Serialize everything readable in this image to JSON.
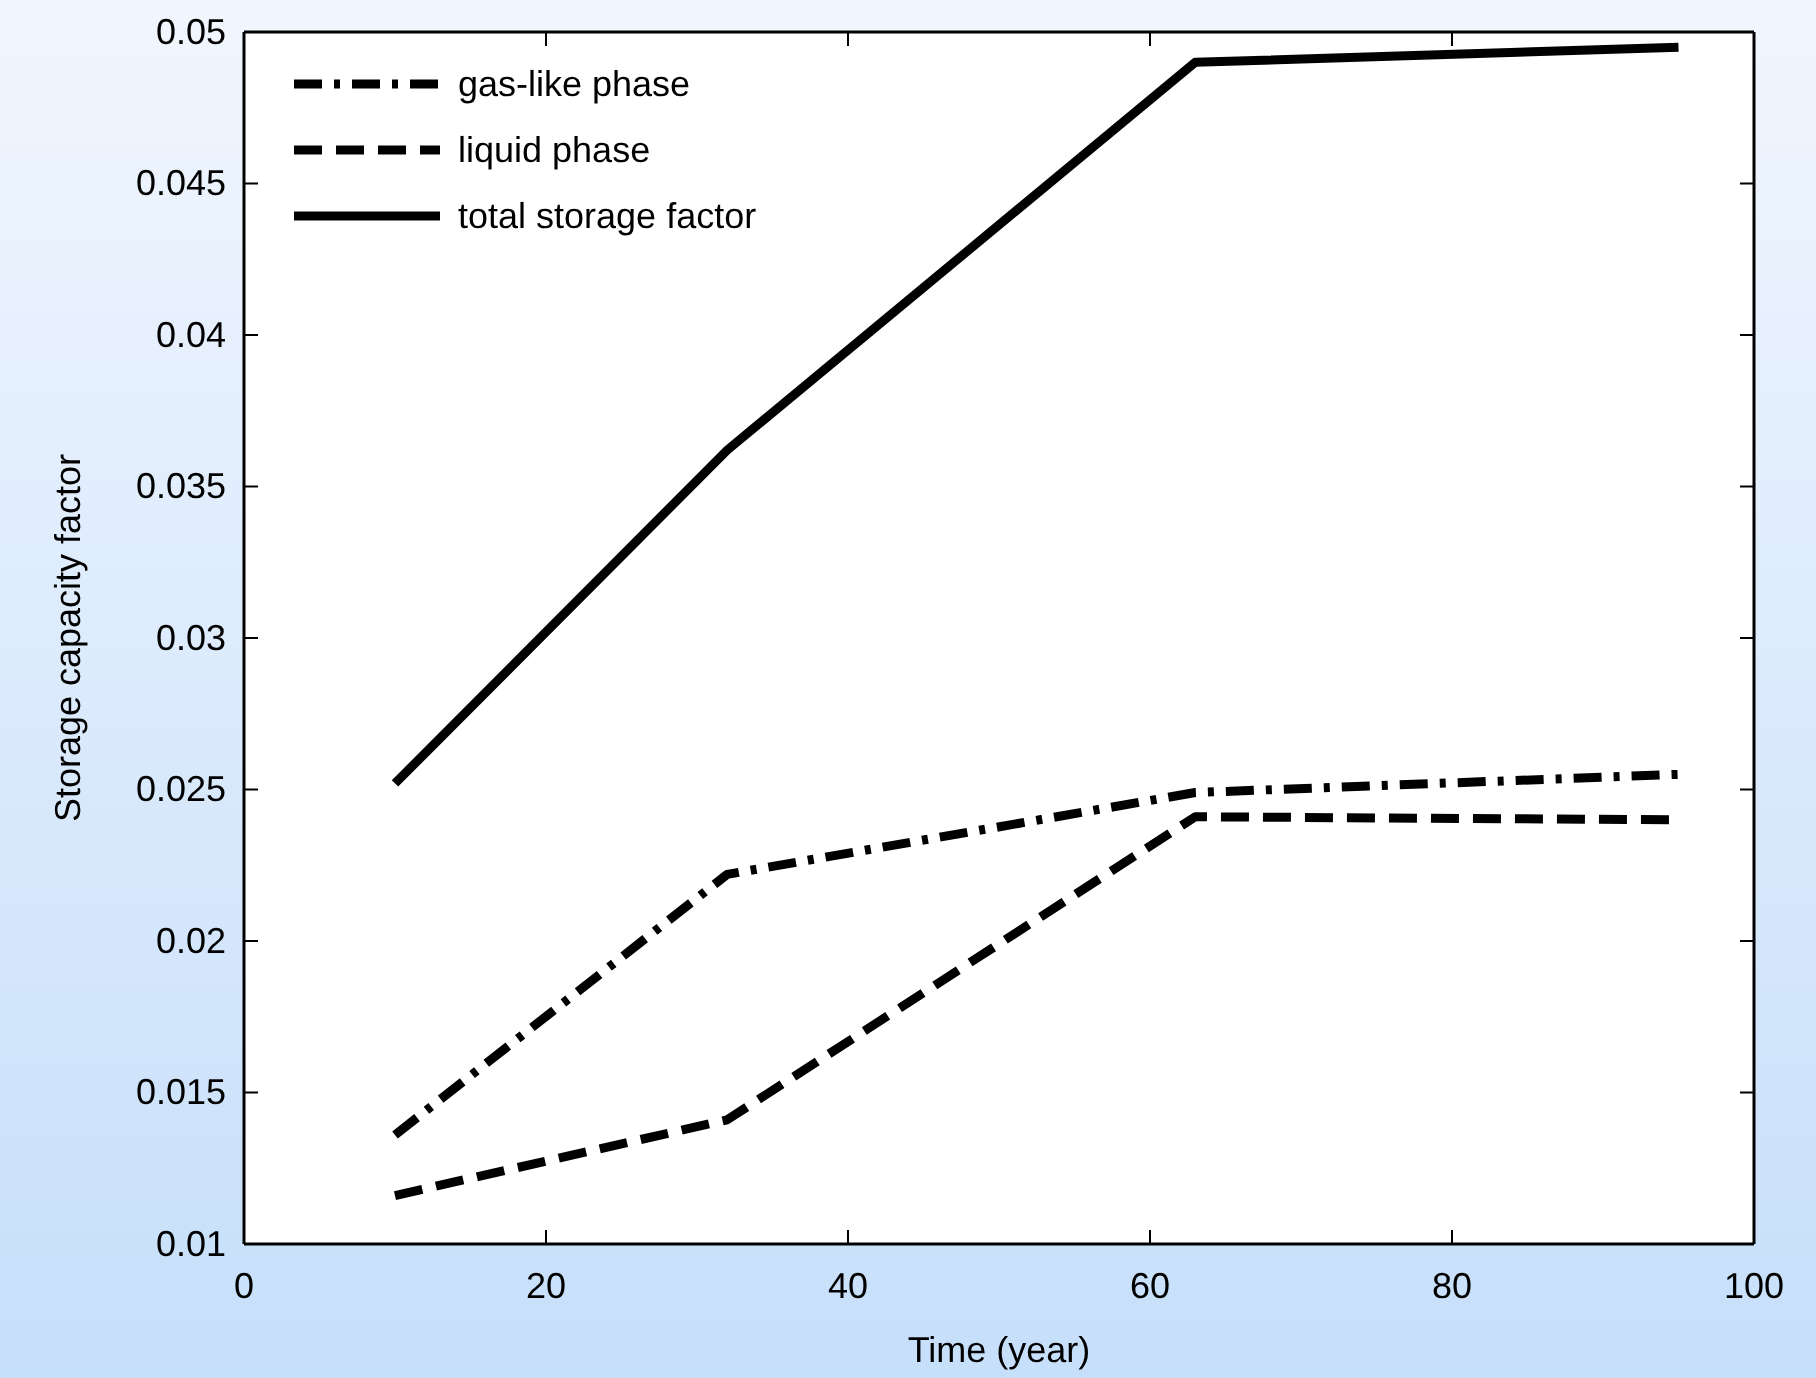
{
  "chart_data": {
    "type": "line",
    "xlabel": "Time (year)",
    "ylabel": "Storage capacity factor",
    "x": [
      10,
      32,
      63,
      95
    ],
    "series": [
      {
        "name": "gas-like phase",
        "color": "#000000",
        "line_style": "dashdot",
        "values": [
          0.0136,
          0.0222,
          0.0249,
          0.0255
        ]
      },
      {
        "name": "liquid phase",
        "color": "#000000",
        "line_style": "dashed",
        "values": [
          0.0116,
          0.0141,
          0.0241,
          0.024
        ]
      },
      {
        "name": "total storage factor",
        "color": "#000000",
        "line_style": "solid",
        "values": [
          0.0252,
          0.0362,
          0.049,
          0.0495
        ]
      }
    ],
    "xlim": [
      0,
      100
    ],
    "xticks": [
      0,
      20,
      40,
      60,
      80,
      100
    ],
    "ylim": [
      0.01,
      0.05
    ],
    "yticks": [
      0.01,
      0.015,
      0.02,
      0.025,
      0.03,
      0.035,
      0.04,
      0.045,
      0.05
    ],
    "legend": "top left",
    "grid": false,
    "marker": "none"
  }
}
